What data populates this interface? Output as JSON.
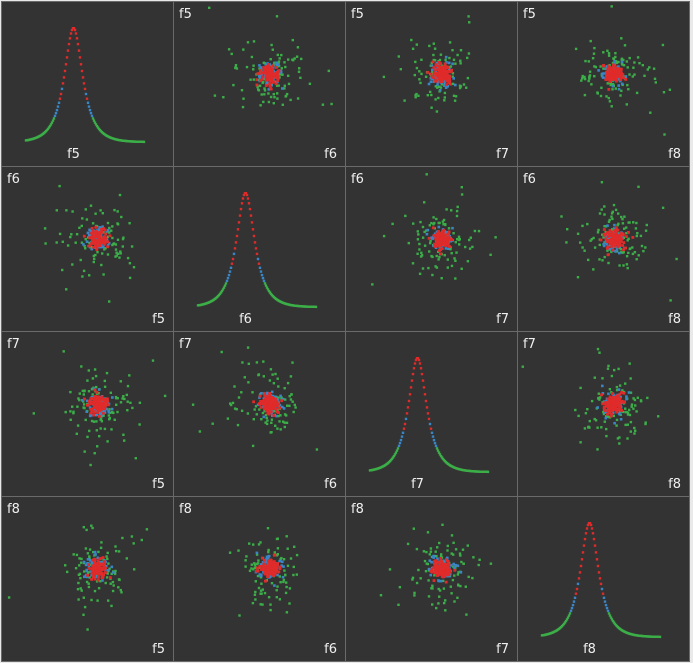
{
  "chart_data": {
    "type": "scatter-matrix",
    "features": [
      "f5",
      "f6",
      "f7",
      "f8"
    ],
    "diagonal": "density",
    "colors": {
      "panel_background": "#333333",
      "grid_gap": "#e9e9e9",
      "label": "#f0f0f0",
      "class_outer": "#3cae49",
      "class_middle": "#3a85c6",
      "class_core": "#e02b2b"
    },
    "series": [
      {
        "class": "outer",
        "color": "#3cae49"
      },
      {
        "class": "middle",
        "color": "#3a85c6"
      },
      {
        "class": "core",
        "color": "#e02b2b"
      }
    ]
  }
}
